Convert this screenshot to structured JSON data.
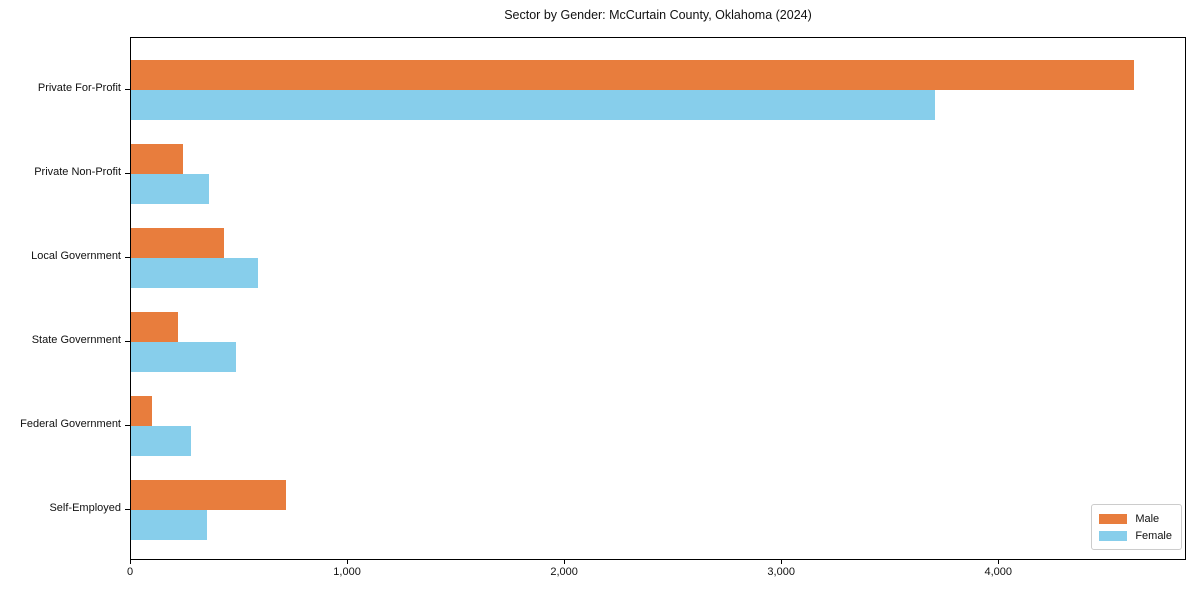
{
  "chart_data": {
    "type": "bar",
    "orientation": "horizontal",
    "title": "Sector by Gender: McCurtain County, Oklahoma (2024)",
    "categories": [
      "Private For-Profit",
      "Private Non-Profit",
      "Local Government",
      "State Government",
      "Federal Government",
      "Self-Employed"
    ],
    "series": [
      {
        "name": "Male",
        "color": "#E87D3D",
        "values": [
          4630,
          240,
          430,
          215,
          95,
          715
        ]
      },
      {
        "name": "Female",
        "color": "#87CEEB",
        "values": [
          3710,
          360,
          585,
          485,
          275,
          350
        ]
      }
    ],
    "xlabel": "",
    "ylabel": "",
    "xlim": [
      0,
      4865
    ],
    "xticks": [
      {
        "value": 0,
        "label": "0"
      },
      {
        "value": 1000,
        "label": "1,000"
      },
      {
        "value": 2000,
        "label": "2,000"
      },
      {
        "value": 3000,
        "label": "3,000"
      },
      {
        "value": 4000,
        "label": "4,000"
      }
    ],
    "grid": false,
    "legend": {
      "position": "lower right",
      "entries": [
        "Male",
        "Female"
      ]
    }
  }
}
